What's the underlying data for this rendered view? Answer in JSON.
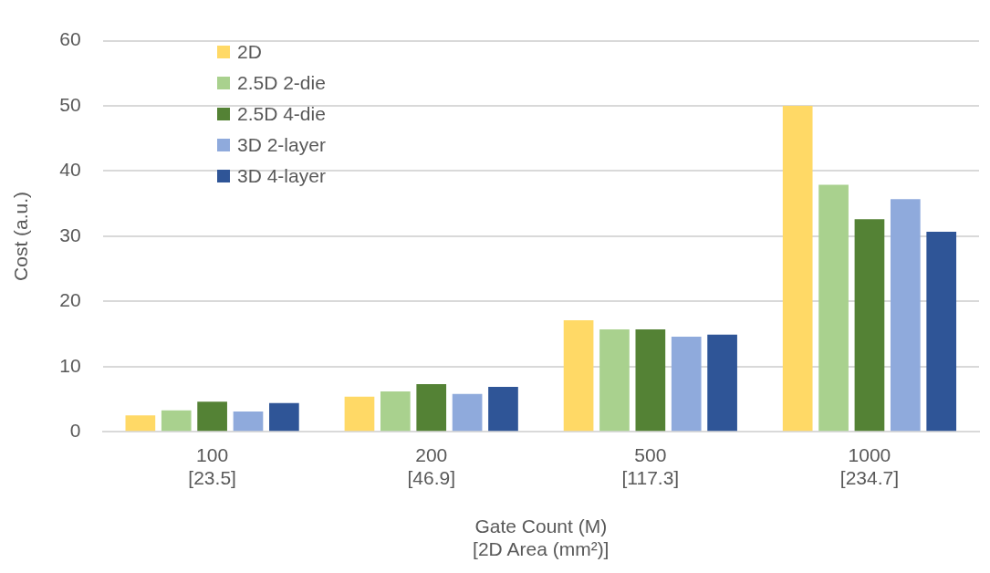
{
  "chart_data": {
    "type": "bar",
    "xlabel": "Gate Count (M)\n[2D Area (mm²)]",
    "ylabel": "Cost (a.u.)",
    "categories": [
      "100\n[23.5]",
      "200\n[46.9]",
      "500\n[117.3]",
      "1000\n[234.7]"
    ],
    "series": [
      {
        "name": "2D",
        "color": "#ffd966",
        "values": [
          2.5,
          5.4,
          17.1,
          50
        ]
      },
      {
        "name": "2.5D 2-die",
        "color": "#a9d18e",
        "values": [
          3.3,
          6.2,
          15.7,
          37.9
        ]
      },
      {
        "name": "2.5D 4-die",
        "color": "#548235",
        "values": [
          4.6,
          7.3,
          15.7,
          32.6
        ]
      },
      {
        "name": "3D 2-layer",
        "color": "#8faadc",
        "values": [
          3.1,
          5.8,
          14.6,
          35.7
        ]
      },
      {
        "name": "3D 4-layer",
        "color": "#2f5597",
        "values": [
          4.4,
          6.9,
          14.9,
          30.7
        ]
      }
    ],
    "ylim": [
      0,
      60
    ],
    "yticks": [
      0,
      10,
      20,
      30,
      40,
      50,
      60
    ],
    "grid": "y",
    "legend": "top left"
  }
}
